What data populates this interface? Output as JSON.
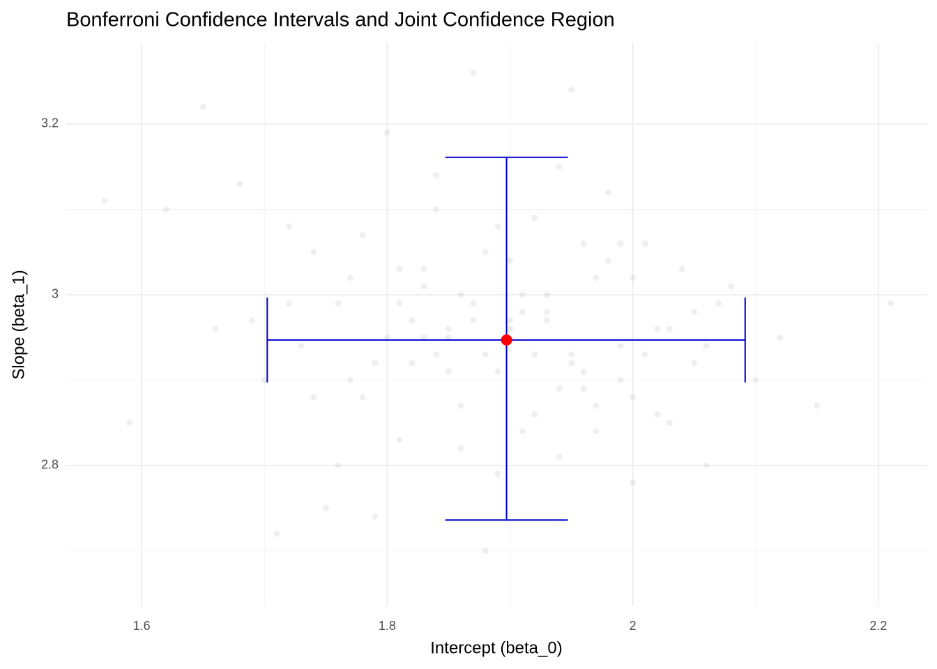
{
  "chart_data": {
    "type": "scatter",
    "title": "Bonferroni Confidence Intervals and Joint Confidence Region",
    "x_label": "Intercept (beta_0)",
    "y_label": "Slope (beta_1)",
    "xlim": [
      1.5386,
      2.2398
    ],
    "ylim": [
      2.635,
      3.2947
    ],
    "xticks": [
      1.6,
      1.8,
      2.0,
      2.2
    ],
    "yticks": [
      2.8,
      3.0,
      3.2
    ],
    "x_minor_grid": [
      1.7,
      1.9,
      2.1
    ],
    "y_minor_grid": [
      2.7,
      2.9,
      3.1
    ],
    "grid": true,
    "points": {
      "color": "#bebebe",
      "opacity": 0.25,
      "x": [
        1.57,
        1.59,
        1.62,
        1.65,
        1.66,
        1.68,
        1.69,
        1.7,
        1.71,
        1.72,
        1.73,
        1.74,
        1.75,
        1.76,
        1.77,
        1.78,
        1.79,
        1.8,
        1.81,
        1.82,
        1.83,
        1.84,
        1.85,
        1.86,
        1.87,
        1.88,
        1.89,
        1.9,
        1.91,
        1.92,
        1.93,
        1.94,
        1.95,
        1.96,
        1.97,
        1.98,
        1.99,
        2.0,
        2.01,
        2.02,
        2.03,
        2.04,
        2.05,
        2.06,
        2.07,
        2.08,
        2.1,
        2.12,
        2.15,
        2.21,
        1.74,
        1.78,
        1.81,
        1.84,
        1.86,
        1.88,
        1.9,
        1.92,
        1.94,
        1.97,
        1.99,
        2.02,
        2.05,
        1.76,
        1.8,
        1.83,
        1.85,
        1.87,
        1.89,
        1.91,
        1.93,
        1.95,
        1.98,
        2.0,
        2.03,
        1.79,
        1.82,
        1.86,
        1.9,
        1.94,
        1.96,
        2.01,
        1.72,
        1.77,
        1.84,
        1.88,
        1.92,
        1.96,
        2.0,
        2.06,
        1.87,
        1.89,
        1.91,
        1.85,
        1.93,
        1.95,
        1.81,
        1.97,
        1.83,
        1.99
      ],
      "y": [
        3.11,
        2.85,
        3.1,
        3.22,
        2.96,
        3.13,
        2.97,
        2.9,
        2.72,
        3.08,
        2.94,
        3.05,
        2.75,
        2.99,
        3.02,
        2.88,
        2.92,
        3.19,
        2.83,
        2.97,
        3.01,
        3.14,
        2.95,
        2.87,
        3.26,
        2.93,
        2.79,
        3.04,
        2.98,
        2.86,
        3.0,
        2.89,
        3.24,
        2.91,
        2.84,
        3.12,
        2.94,
        2.78,
        3.06,
        2.96,
        2.85,
        3.03,
        2.92,
        2.8,
        2.99,
        3.01,
        2.9,
        2.95,
        2.87,
        2.99,
        2.88,
        3.07,
        2.99,
        3.1,
        2.82,
        3.05,
        2.97,
        2.93,
        3.15,
        3.02,
        2.9,
        2.86,
        2.98,
        2.8,
        2.95,
        3.03,
        2.91,
        2.99,
        3.08,
        2.84,
        2.97,
        2.92,
        3.04,
        2.88,
        2.96,
        2.74,
        2.92,
        3.0,
        2.96,
        2.81,
        3.06,
        2.93,
        2.99,
        2.9,
        2.93,
        2.7,
        3.09,
        2.89,
        3.02,
        2.94,
        2.97,
        2.91,
        3.0,
        2.96,
        2.98,
        2.93,
        3.03,
        2.87,
        2.95,
        3.06
      ]
    },
    "intervals": {
      "color": "#0000cd",
      "x": [
        1.7023,
        2.0915
      ],
      "y": [
        2.736,
        3.161
      ]
    },
    "estimate": {
      "color": "#ff0000",
      "x": 1.8972,
      "y": 2.947
    }
  }
}
